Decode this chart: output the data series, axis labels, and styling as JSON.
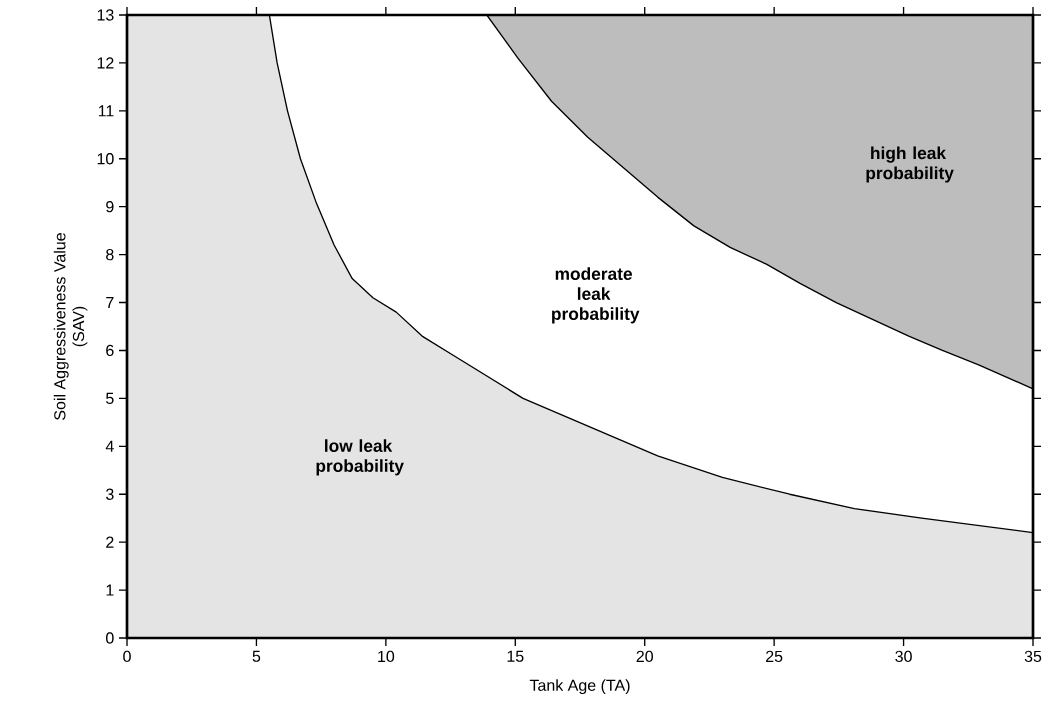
{
  "chart_data": {
    "type": "area",
    "xlabel": "Tank Age (TA)",
    "ylabel": "Soil Aggressiveness Value (SAV)",
    "xlim": [
      0,
      35
    ],
    "ylim": [
      0,
      13
    ],
    "xticks": [
      0,
      5,
      10,
      15,
      20,
      25,
      30,
      35
    ],
    "yticks": [
      0,
      1,
      2,
      3,
      4,
      5,
      6,
      7,
      8,
      9,
      10,
      11,
      12,
      13
    ],
    "series": [
      {
        "color": "#e4e4e4",
        "x": [
          0,
          5.5,
          5.8,
          6.2,
          6.7,
          7.3,
          8.0,
          8.7,
          9.5,
          10.4,
          11.4,
          12.6,
          15.3,
          17.9,
          20.5,
          23.0,
          25.6,
          28.1,
          30.7,
          35
        ],
        "values": [
          13,
          13,
          12.0,
          11.0,
          10.0,
          9.1,
          8.2,
          7.5,
          7.1,
          6.8,
          6.3,
          5.9,
          5.0,
          4.4,
          3.8,
          3.35,
          3.0,
          2.7,
          2.5,
          2.2
        ]
      },
      {
        "color": "#bdbdbd",
        "x": [
          13.9,
          15.1,
          16.4,
          17.8,
          19.2,
          20.5,
          21.9,
          23.3,
          24.7,
          26.0,
          27.4,
          28.8,
          30.2,
          31.5,
          32.9,
          35
        ],
        "values": [
          13,
          12.1,
          11.2,
          10.45,
          9.8,
          9.2,
          8.6,
          8.15,
          7.8,
          7.4,
          7.0,
          6.65,
          6.3,
          6.0,
          5.7,
          5.2
        ]
      }
    ],
    "annotations": [
      "low leak probability",
      "moderate leak probability",
      "high leak probability"
    ]
  }
}
